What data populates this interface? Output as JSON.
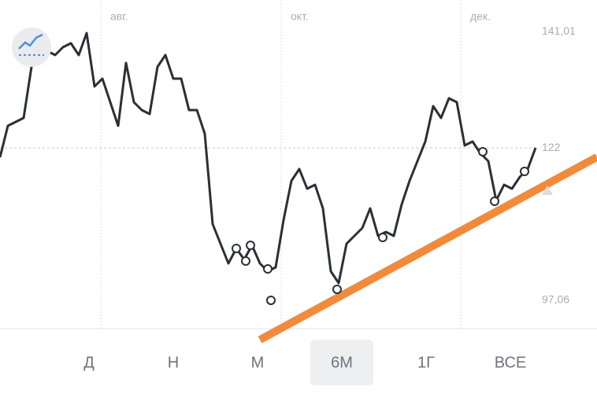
{
  "chart_data": {
    "type": "line",
    "x": [
      0,
      2,
      4,
      6,
      8,
      10,
      12,
      14,
      16,
      18,
      20,
      22,
      24,
      26,
      28,
      30,
      32,
      34,
      36,
      38,
      40,
      42,
      44,
      46,
      48,
      50,
      52,
      54,
      56,
      58,
      60,
      62,
      64,
      66,
      68,
      70,
      72,
      74,
      76,
      78,
      80,
      82,
      84,
      86,
      88,
      90,
      92,
      94,
      96,
      98,
      100,
      102,
      104,
      106,
      108,
      110,
      112,
      114,
      116,
      118,
      120,
      122,
      124,
      126,
      128,
      130,
      132,
      134,
      136
    ],
    "values": [
      120.46,
      125.61,
      126.25,
      126.9,
      135.26,
      137.19,
      137.83,
      137.19,
      138.48,
      139.12,
      137.19,
      140.79,
      132.04,
      133.33,
      129.47,
      125.61,
      135.9,
      129.47,
      128.18,
      127.54,
      135.26,
      137.19,
      133.33,
      133.33,
      128.18,
      128.18,
      124.32,
      109.53,
      106.31,
      103.09,
      105.54,
      103.74,
      106.05,
      103.09,
      101.81,
      102.45,
      110.17,
      116.6,
      118.53,
      115.32,
      115.96,
      112.1,
      101.81,
      99.88,
      106.31,
      107.6,
      108.88,
      112.1,
      107.6,
      108.24,
      107.6,
      112.74,
      116.6,
      119.82,
      123.04,
      128.83,
      126.9,
      130.11,
      129.47,
      122.39,
      123.04,
      121.11,
      119.82,
      113.39,
      115.96,
      115.32,
      117.25,
      118.53,
      122.01
    ],
    "color": "#2b2f36",
    "xlim": [
      0,
      151.6
    ],
    "ylim": [
      92.8,
      146.2
    ],
    "xticks": [
      {
        "value": 25.6,
        "label": "авг."
      },
      {
        "value": 71.4,
        "label": "окт."
      },
      {
        "value": 117,
        "label": "дек."
      }
    ],
    "yticks": [
      {
        "value": 141.01,
        "label": "141,01"
      },
      122,
      {
        "value": 97.06,
        "label": "97,06"
      }
    ],
    "xgrid": true,
    "last_price_line": true,
    "markers": {
      "x": [
        60,
        62.4,
        63.6,
        68,
        68.8,
        85.6,
        97.2,
        122.6,
        125.6,
        133.2
      ],
      "y": [
        105.54,
        103.48,
        106.05,
        102.19,
        97.05,
        98.85,
        107.34,
        121.37,
        113.26,
        118.15
      ]
    },
    "trendline": {
      "x": [
        66,
        151.6
      ],
      "y": [
        90.6,
        120.5
      ],
      "color": "#f28a3c"
    }
  },
  "periods": [
    "Д",
    "Н",
    "М",
    "6М",
    "1Г",
    "ВСЕ"
  ],
  "selected_period": 3
}
